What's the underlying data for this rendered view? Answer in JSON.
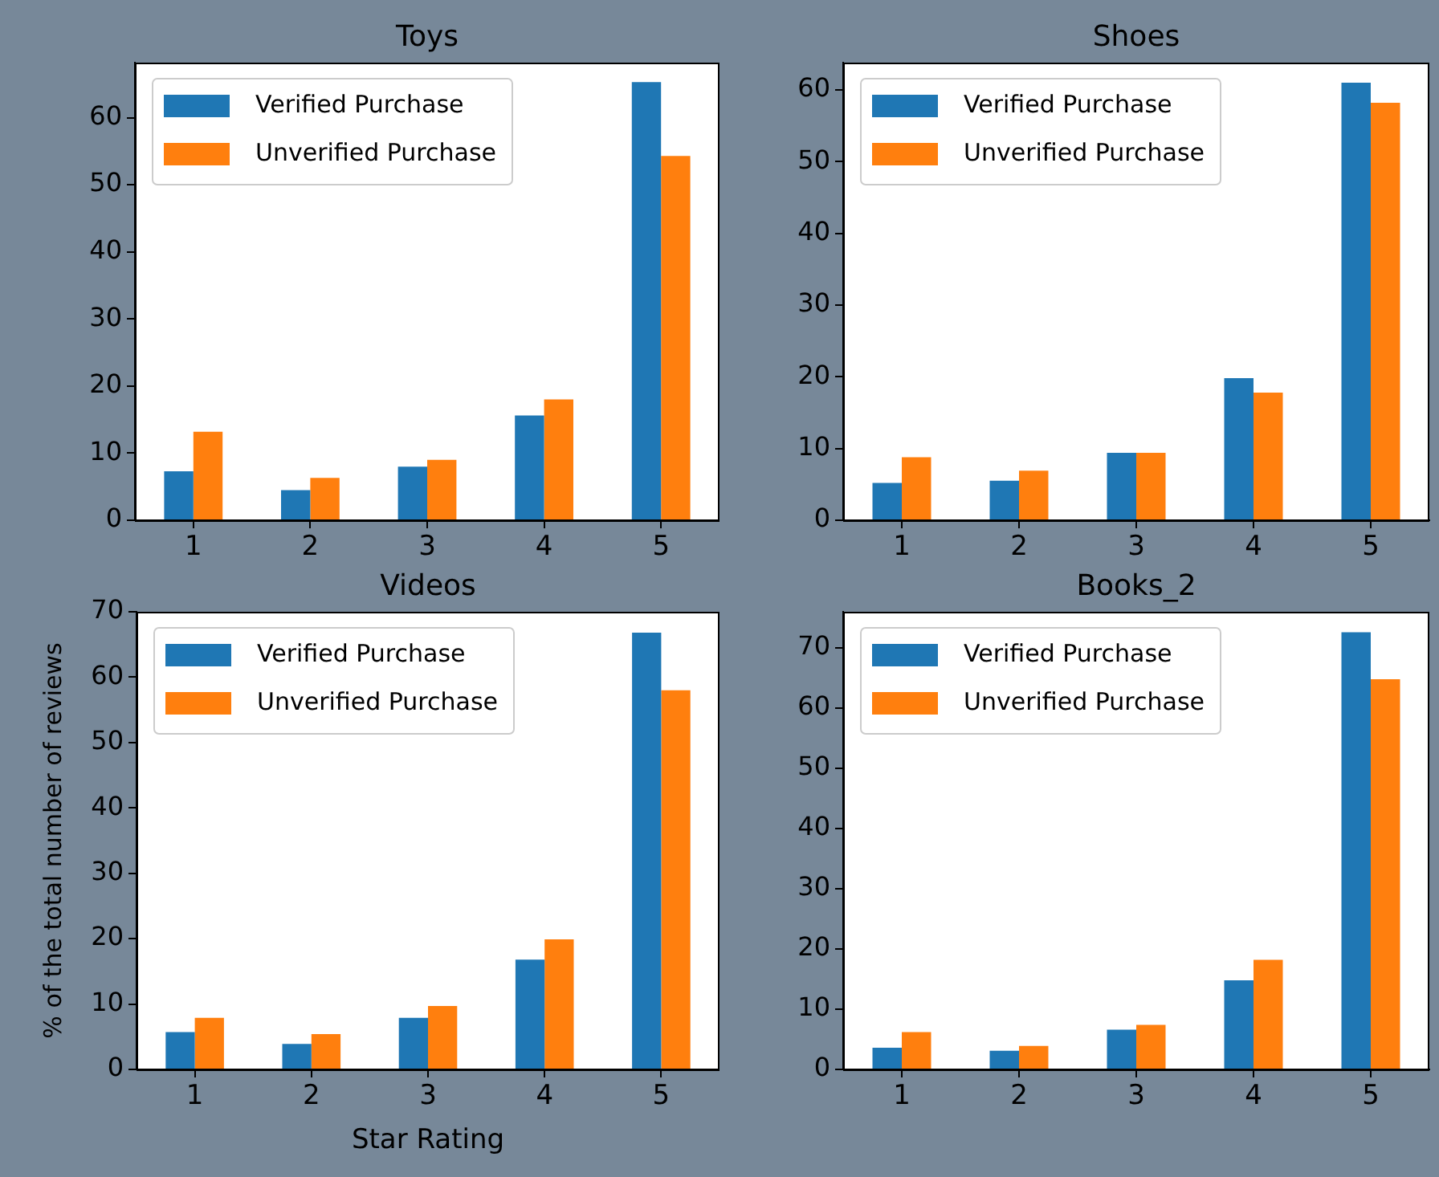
{
  "chart_data": [
    {
      "type": "bar",
      "title": "Toys",
      "categories": [
        "1",
        "2",
        "3",
        "4",
        "5"
      ],
      "series": [
        {
          "name": "Verified Purchase",
          "color": "#1f77b4",
          "values": [
            7.3,
            4.5,
            8.0,
            15.6,
            65.3
          ]
        },
        {
          "name": "Unverified Purchase",
          "color": "#ff7f0e",
          "values": [
            13.2,
            6.3,
            9.0,
            18.0,
            54.3
          ]
        }
      ],
      "ylim": [
        0,
        68.2
      ],
      "yticks": [
        0,
        10,
        20,
        30,
        40,
        50,
        60
      ],
      "grid": false,
      "legend": "top left"
    },
    {
      "type": "bar",
      "title": "Shoes",
      "categories": [
        "1",
        "2",
        "3",
        "4",
        "5"
      ],
      "series": [
        {
          "name": "Verified Purchase",
          "color": "#1f77b4",
          "values": [
            5.2,
            5.5,
            9.4,
            19.8,
            61.0
          ]
        },
        {
          "name": "Unverified Purchase",
          "color": "#ff7f0e",
          "values": [
            8.8,
            6.9,
            9.4,
            17.8,
            58.2
          ]
        }
      ],
      "ylim": [
        0,
        63.8
      ],
      "yticks": [
        0,
        10,
        20,
        30,
        40,
        50,
        60
      ],
      "grid": false,
      "legend": "top left"
    },
    {
      "type": "bar",
      "title": "Videos",
      "xlabel": "Star Rating",
      "ylabel": "% of the total number of reviews",
      "categories": [
        "1",
        "2",
        "3",
        "4",
        "5"
      ],
      "series": [
        {
          "name": "Verified Purchase",
          "color": "#1f77b4",
          "values": [
            5.7,
            3.9,
            7.9,
            16.8,
            66.8
          ]
        },
        {
          "name": "Unverified Purchase",
          "color": "#ff7f0e",
          "values": [
            7.9,
            5.4,
            9.7,
            19.9,
            58.0
          ]
        }
      ],
      "ylim": [
        0,
        70
      ],
      "yticks": [
        0,
        10,
        20,
        30,
        40,
        50,
        60,
        70
      ],
      "grid": false,
      "legend": "top left"
    },
    {
      "type": "bar",
      "title": "Books_2",
      "categories": [
        "1",
        "2",
        "3",
        "4",
        "5"
      ],
      "series": [
        {
          "name": "Verified Purchase",
          "color": "#1f77b4",
          "values": [
            3.6,
            3.1,
            6.6,
            14.8,
            72.6
          ]
        },
        {
          "name": "Unverified Purchase",
          "color": "#ff7f0e",
          "values": [
            6.2,
            3.9,
            7.4,
            18.2,
            64.8
          ]
        }
      ],
      "ylim": [
        0,
        76.0
      ],
      "yticks": [
        0,
        10,
        20,
        30,
        40,
        50,
        60,
        70
      ],
      "grid": false,
      "legend": "top left"
    }
  ]
}
